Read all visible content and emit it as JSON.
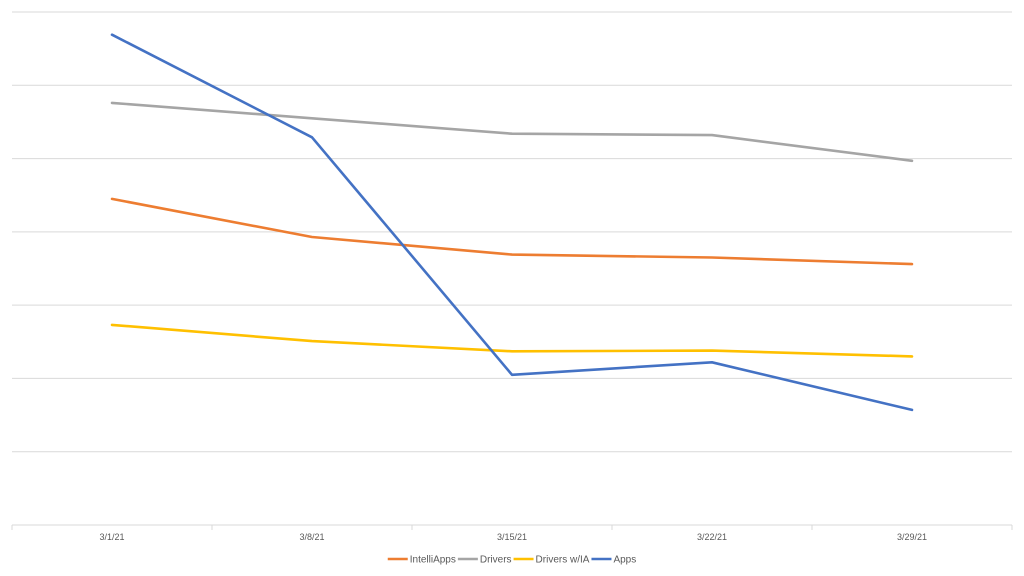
{
  "chart_data": {
    "type": "line",
    "title": "",
    "xlabel": "",
    "ylabel": "",
    "categories": [
      "3/1/21",
      "3/8/21",
      "3/15/21",
      "3/22/21",
      "3/29/21"
    ],
    "ylim": [
      0,
      7
    ],
    "y_tick_labels_visible": false,
    "grid": true,
    "legend_position": "bottom",
    "series": [
      {
        "name": "IntelliApps",
        "color": "#ED7D31",
        "values": [
          4.45,
          3.93,
          3.69,
          3.65,
          3.56
        ]
      },
      {
        "name": "Drivers",
        "color": "#A5A5A5",
        "values": [
          5.76,
          5.55,
          5.34,
          5.32,
          4.97
        ]
      },
      {
        "name": "Drivers w/IA",
        "color": "#FFC000",
        "values": [
          2.73,
          2.51,
          2.37,
          2.38,
          2.3
        ]
      },
      {
        "name": "Apps",
        "color": "#4472C4",
        "values": [
          6.69,
          5.29,
          2.05,
          2.22,
          1.57
        ]
      }
    ]
  }
}
